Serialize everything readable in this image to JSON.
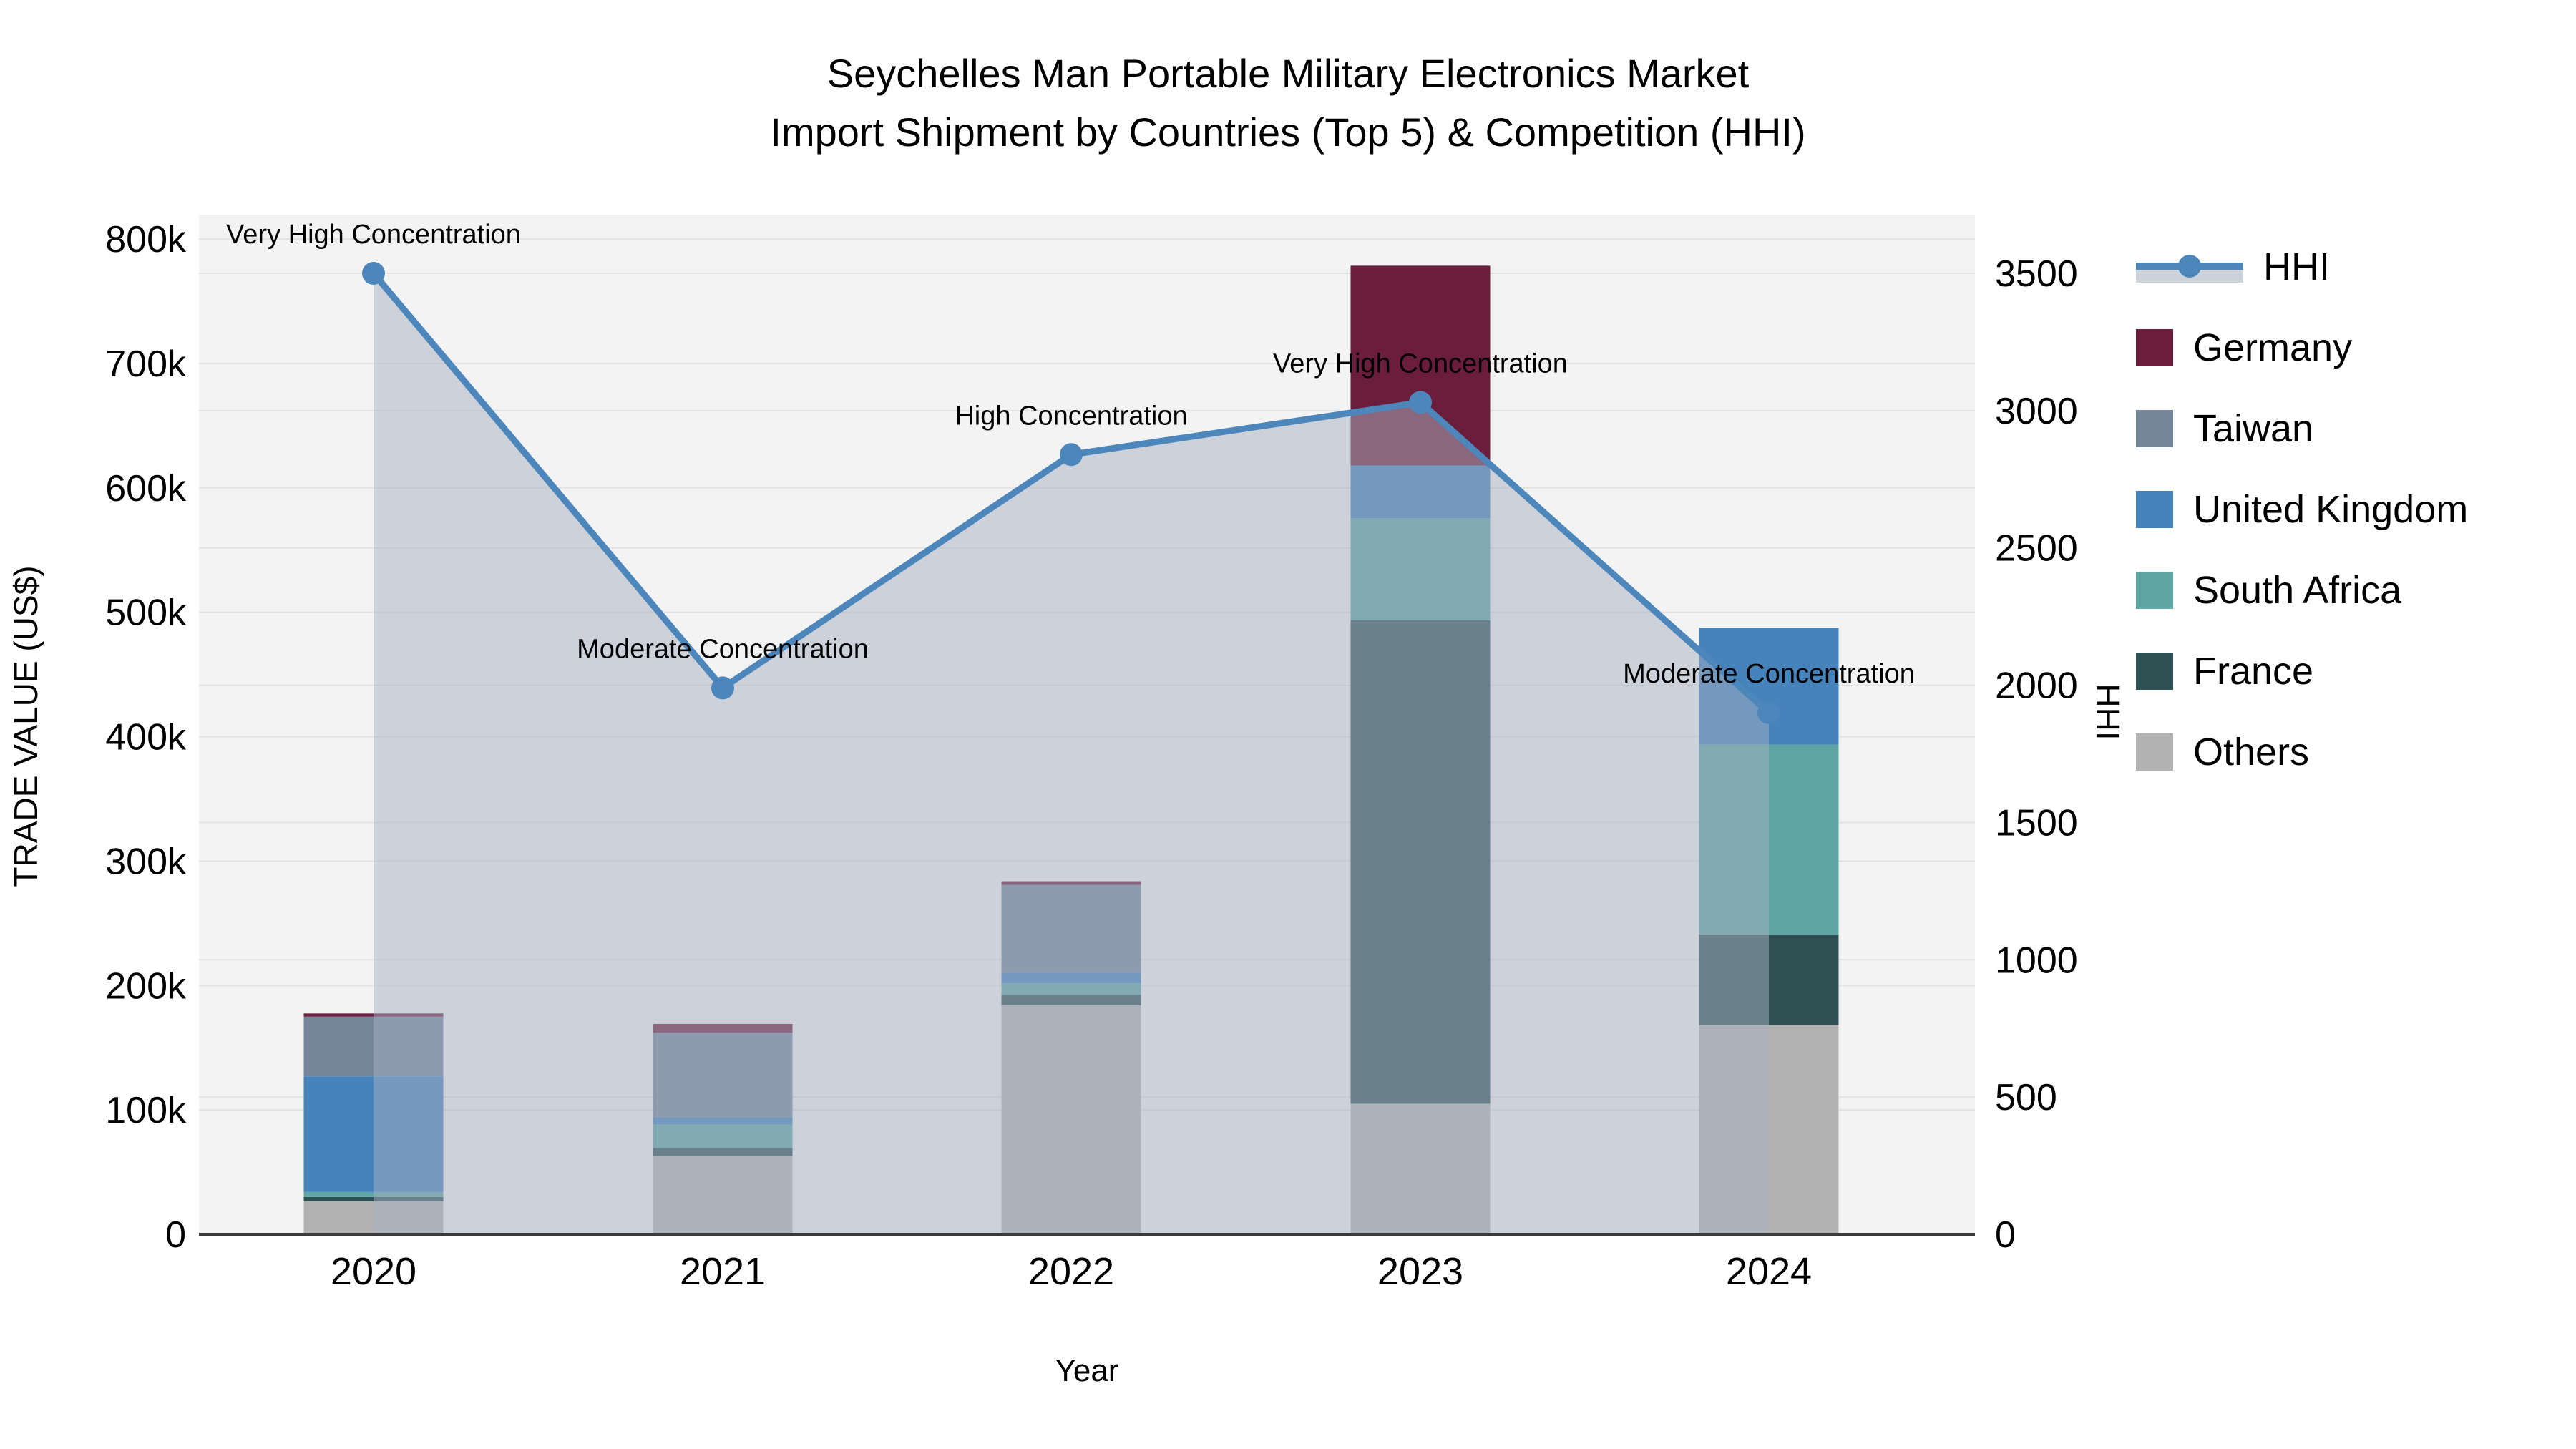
{
  "title": {
    "line1": "Seychelles Man Portable Military Electronics Market",
    "line2": "Import Shipment by Countries (Top 5) & Competition (HHI)"
  },
  "axes": {
    "x": {
      "title": "Year",
      "categories": [
        "2020",
        "2021",
        "2022",
        "2023",
        "2024"
      ]
    },
    "left": {
      "title": "TRADE VALUE (US$)",
      "tick_labels": [
        "0",
        "100k",
        "200k",
        "300k",
        "400k",
        "500k",
        "600k",
        "700k",
        "800k"
      ],
      "tick_values": [
        0,
        100000,
        200000,
        300000,
        400000,
        500000,
        600000,
        700000,
        800000
      ],
      "range": [
        0,
        800000
      ]
    },
    "right": {
      "title": "HHI",
      "tick_labels": [
        "0",
        "500",
        "1000",
        "1500",
        "2000",
        "2500",
        "3000",
        "3500"
      ],
      "tick_values": [
        0,
        500,
        1000,
        1500,
        2000,
        2500,
        3000,
        3500
      ],
      "range": [
        0,
        3500
      ]
    }
  },
  "legend": {
    "items": [
      {
        "label": "HHI",
        "type": "line",
        "color": "#4c86bb"
      },
      {
        "label": "Germany",
        "type": "box",
        "color": "#6b1e3c"
      },
      {
        "label": "Taiwan",
        "type": "box",
        "color": "#76869a"
      },
      {
        "label": "United Kingdom",
        "type": "box",
        "color": "#4583ba"
      },
      {
        "label": "South Africa",
        "type": "box",
        "color": "#5fa5a3"
      },
      {
        "label": "France",
        "type": "box",
        "color": "#2e5153"
      },
      {
        "label": "Others",
        "type": "box",
        "color": "#b2b2b2"
      }
    ]
  },
  "chart_data": {
    "type": "combo-stacked-bar-line",
    "categories": [
      "2020",
      "2021",
      "2022",
      "2023",
      "2024"
    ],
    "bar_unit": "US$",
    "series": [
      {
        "name": "Germany",
        "color": "#6b1e3c",
        "values": [
          2500,
          7000,
          3000,
          160500,
          0
        ]
      },
      {
        "name": "Taiwan",
        "color": "#76869a",
        "values": [
          48000,
          68000,
          70500,
          0,
          0
        ]
      },
      {
        "name": "United Kingdom",
        "color": "#4583ba",
        "values": [
          93000,
          5800,
          8600,
          42500,
          94000
        ]
      },
      {
        "name": "South Africa",
        "color": "#5fa5a3",
        "values": [
          4000,
          19000,
          9200,
          82000,
          152500
        ]
      },
      {
        "name": "France",
        "color": "#2e5153",
        "values": [
          3500,
          6300,
          8500,
          388500,
          73000
        ]
      },
      {
        "name": "Others",
        "color": "#b2b2b2",
        "values": [
          26500,
          63000,
          184000,
          105000,
          168000
        ]
      }
    ],
    "stack_order_bottom_to_top": [
      "Others",
      "France",
      "South Africa",
      "United Kingdom",
      "Taiwan",
      "Germany"
    ],
    "hhi": {
      "name": "HHI",
      "color": "#4c86bb",
      "area_fill": "rgba(165,176,194,0.5)",
      "values": [
        3500,
        1990,
        2840,
        3030,
        1900
      ]
    },
    "annotations": [
      {
        "category": "2020",
        "text": "Very High Concentration"
      },
      {
        "category": "2021",
        "text": "Moderate Concentration"
      },
      {
        "category": "2022",
        "text": "High Concentration"
      },
      {
        "category": "2023",
        "text": "Very High Concentration"
      },
      {
        "category": "2024",
        "text": "Moderate Concentration"
      }
    ],
    "layout": {
      "plot_bg": "#f3f3f3",
      "grid_color": "#e3e3e3",
      "axis_line_color": "#3a3a3a",
      "legend_position": "right"
    }
  }
}
